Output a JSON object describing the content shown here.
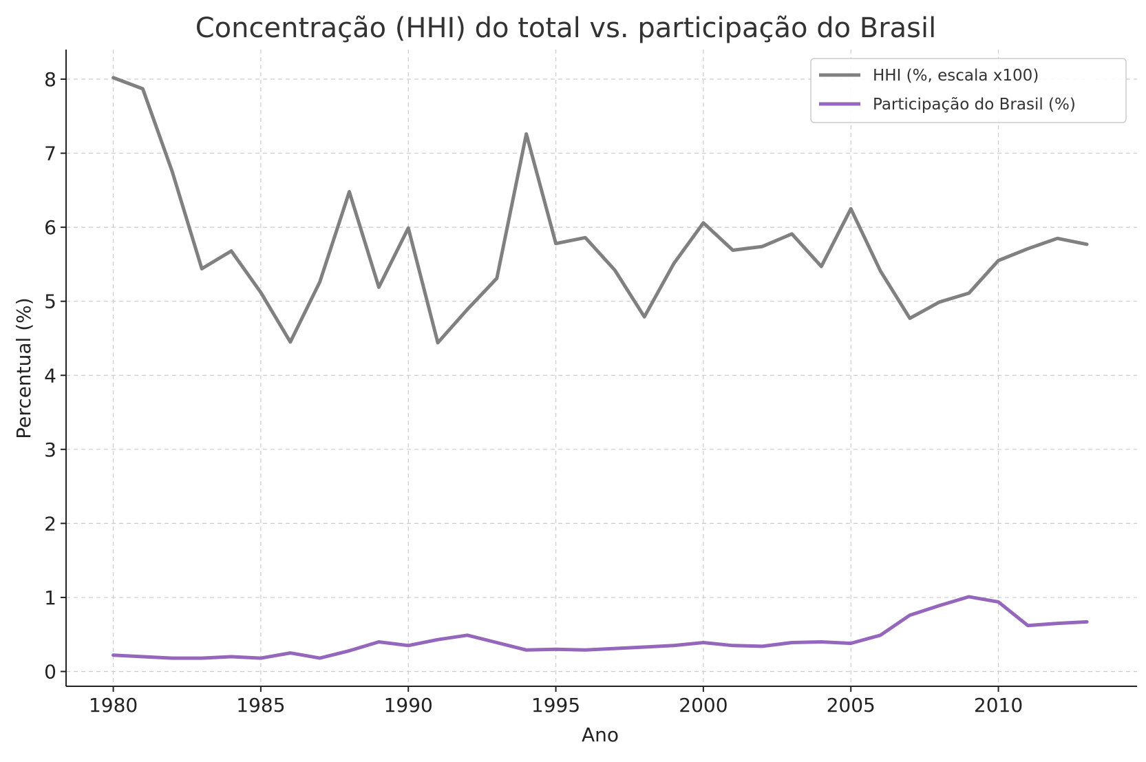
{
  "chart_data": {
    "type": "line",
    "title": "Concentração (HHI) do total vs. participação do Brasil",
    "xlabel": "Ano",
    "ylabel": "Percentual (%)",
    "xlim": [
      1978.4,
      2014.7
    ],
    "ylim": [
      -0.2,
      8.4
    ],
    "xticks": [
      1980,
      1985,
      1990,
      1995,
      2000,
      2005,
      2010
    ],
    "yticks": [
      0,
      1,
      2,
      3,
      4,
      5,
      6,
      7,
      8
    ],
    "grid": true,
    "legend_position": "top-right",
    "x": [
      1980,
      1981,
      1982,
      1983,
      1984,
      1985,
      1986,
      1987,
      1988,
      1989,
      1990,
      1991,
      1992,
      1993,
      1994,
      1995,
      1996,
      1997,
      1998,
      1999,
      2000,
      2001,
      2002,
      2003,
      2004,
      2005,
      2006,
      2007,
      2008,
      2009,
      2010,
      2011,
      2012,
      2013
    ],
    "series": [
      {
        "name": "HHI (%, escala x100)",
        "color": "#808080",
        "values": [
          8.02,
          7.87,
          6.75,
          5.44,
          5.68,
          5.12,
          4.45,
          5.26,
          6.48,
          5.19,
          5.99,
          4.44,
          4.89,
          5.31,
          7.26,
          5.78,
          5.86,
          5.42,
          4.79,
          5.51,
          6.06,
          5.69,
          5.74,
          5.91,
          5.47,
          6.25,
          5.41,
          4.77,
          4.99,
          5.11,
          5.55,
          5.71,
          5.85,
          5.77
        ]
      },
      {
        "name": "Participação do Brasil (%)",
        "color": "#9467bd",
        "values": [
          0.22,
          0.2,
          0.18,
          0.18,
          0.2,
          0.18,
          0.25,
          0.18,
          0.28,
          0.4,
          0.35,
          0.43,
          0.49,
          0.39,
          0.29,
          0.3,
          0.29,
          0.31,
          0.33,
          0.35,
          0.39,
          0.35,
          0.34,
          0.39,
          0.4,
          0.38,
          0.49,
          0.76,
          0.89,
          1.01,
          0.94,
          0.62,
          0.65,
          0.67
        ]
      }
    ]
  }
}
